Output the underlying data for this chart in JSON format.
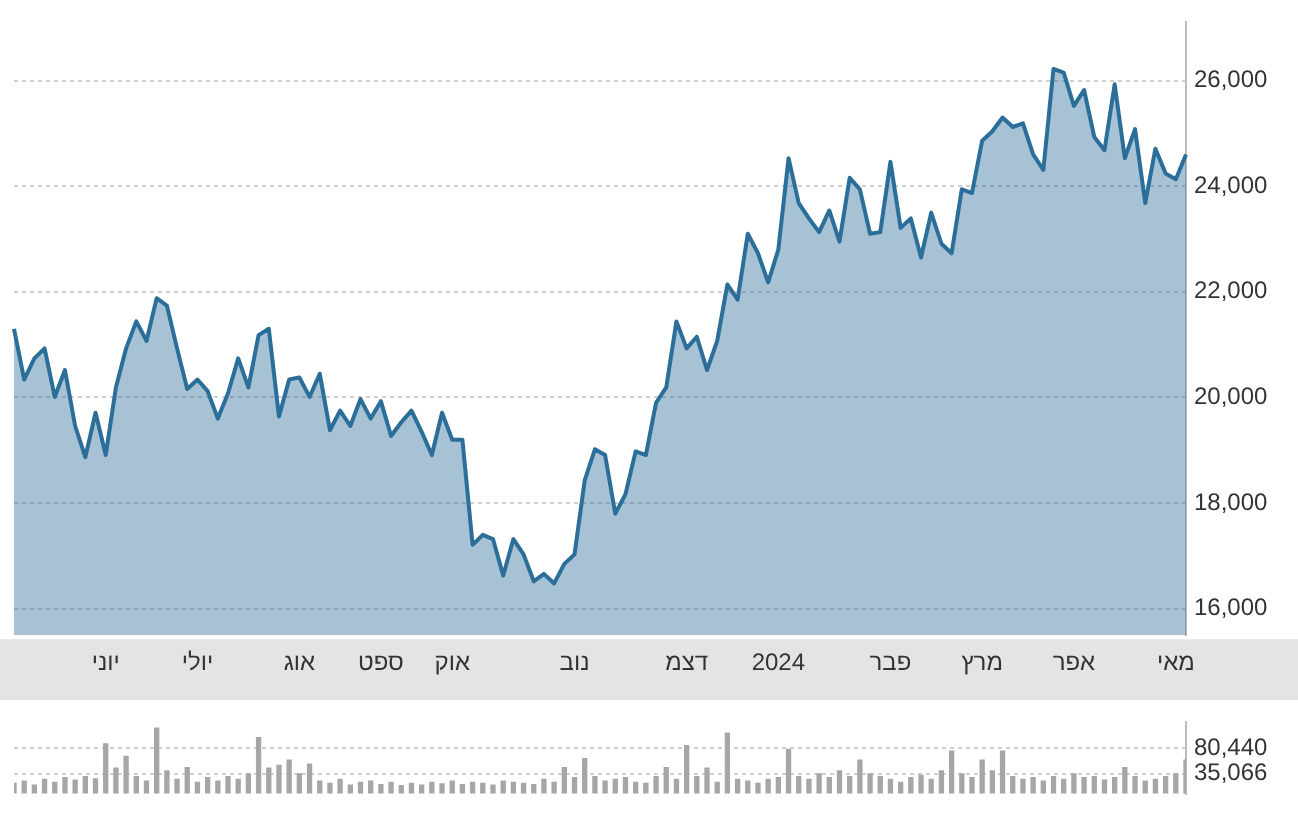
{
  "chart_data": [
    {
      "type": "area",
      "categories": [
        null,
        null,
        null,
        null,
        null,
        null,
        null,
        null,
        null,
        "יוני",
        null,
        null,
        null,
        null,
        null,
        null,
        null,
        null,
        "יולי",
        null,
        null,
        null,
        null,
        null,
        null,
        null,
        null,
        null,
        "אוג",
        null,
        null,
        null,
        null,
        null,
        null,
        null,
        "ספט",
        null,
        null,
        null,
        null,
        null,
        null,
        "אוק",
        null,
        null,
        null,
        null,
        null,
        null,
        null,
        null,
        null,
        null,
        null,
        "נוב",
        null,
        null,
        null,
        null,
        null,
        null,
        null,
        null,
        null,
        null,
        "דצמ",
        null,
        null,
        null,
        null,
        null,
        null,
        null,
        null,
        "2024",
        null,
        null,
        null,
        null,
        null,
        null,
        null,
        null,
        null,
        null,
        "פבר",
        null,
        null,
        null,
        null,
        null,
        null,
        null,
        null,
        "מרץ",
        null,
        null,
        null,
        null,
        null,
        null,
        null,
        null,
        "אפר",
        null,
        null,
        null,
        null,
        null,
        null,
        null,
        null,
        null,
        "מאי",
        null
      ],
      "series": [
        {
          "color": "#2b6e99",
          "values": [
            21300,
            20340,
            20740,
            20930,
            20010,
            20520,
            19460,
            18870,
            19710,
            18910,
            20190,
            20930,
            21440,
            21070,
            21880,
            21740,
            20930,
            20160,
            20340,
            20120,
            19600,
            20080,
            20740,
            20190,
            21180,
            21300,
            19640,
            20340,
            20380,
            20010,
            20450,
            19380,
            19750,
            19460,
            19970,
            19600,
            19930,
            19270,
            19530,
            19750,
            19350,
            18910,
            19710,
            19200,
            19200,
            17210,
            17400,
            17320,
            16630,
            17320,
            17030,
            16520,
            16660,
            16480,
            16850,
            17030,
            18430,
            19020,
            18910,
            17800,
            18170,
            18980,
            18910,
            19900,
            20190,
            21440,
            20930,
            21150,
            20520,
            21070,
            22140,
            21850,
            23100,
            22730,
            22180,
            22800,
            24530,
            23680,
            23390,
            23130,
            23540,
            22950,
            24160,
            23940,
            23100,
            23130,
            24460,
            23210,
            23390,
            22650,
            23500,
            22910,
            22730,
            23940,
            23870,
            24860,
            25040,
            25300,
            25120,
            25190,
            24600,
            24310,
            26220,
            26150,
            25520,
            25820,
            24930,
            24680,
            25930,
            24530,
            25080,
            23680,
            24710,
            24240,
            24130,
            24600
          ]
        }
      ],
      "ylim": [
        15500,
        27100
      ],
      "yticks": [
        {
          "value": 16000,
          "label": "16,000"
        },
        {
          "value": 18000,
          "label": "18,000"
        },
        {
          "value": 20000,
          "label": "20,000"
        },
        {
          "value": 22000,
          "label": "22,000"
        },
        {
          "value": 24000,
          "label": "24,000"
        },
        {
          "value": 26000,
          "label": "26,000"
        }
      ],
      "grid": "y"
    },
    {
      "type": "bar",
      "categories": [
        null,
        null,
        null,
        null,
        null,
        null,
        null,
        null,
        null,
        null,
        null,
        null,
        null,
        null,
        null,
        null,
        null,
        null,
        null,
        null,
        null,
        null,
        null,
        null,
        null,
        null,
        null,
        null,
        null,
        null,
        null,
        null,
        null,
        null,
        null,
        null,
        null,
        null,
        null,
        null,
        null,
        null,
        null,
        null,
        null,
        null,
        null,
        null,
        null,
        null,
        null,
        null,
        null,
        null,
        null,
        null,
        null,
        null,
        null,
        null,
        null,
        null,
        null,
        null,
        null,
        null,
        null,
        null,
        null,
        null,
        null,
        null,
        null,
        null,
        null,
        null,
        null,
        null,
        null,
        null,
        null,
        null,
        null,
        null,
        null,
        null,
        null,
        null,
        null,
        null,
        null,
        null,
        null,
        null,
        null,
        null,
        null,
        null,
        null,
        null,
        null,
        null,
        null,
        null,
        null,
        null,
        null,
        null,
        null,
        null,
        null,
        null,
        null,
        null,
        null,
        null
      ],
      "series": [
        {
          "color": "#a6a6a6",
          "values": [
            18000,
            22000,
            15000,
            25000,
            20000,
            28000,
            24000,
            30000,
            26000,
            88000,
            45000,
            66000,
            30000,
            22000,
            116000,
            40000,
            25000,
            46000,
            20000,
            28000,
            22000,
            30000,
            25000,
            35000,
            99000,
            45000,
            50000,
            59000,
            35000,
            52000,
            22000,
            18000,
            25000,
            15000,
            20000,
            22000,
            16000,
            20000,
            14000,
            18000,
            15000,
            20000,
            17000,
            22000,
            16000,
            20000,
            18000,
            15000,
            22000,
            20000,
            18000,
            16000,
            25000,
            20000,
            46000,
            28000,
            62000,
            30000,
            22000,
            25000,
            28000,
            20000,
            18000,
            30000,
            46000,
            25000,
            85000,
            30000,
            45000,
            20000,
            107000,
            25000,
            22000,
            18000,
            25000,
            28000,
            78000,
            30000,
            25000,
            35000,
            28000,
            40000,
            30000,
            59000,
            35000,
            30000,
            25000,
            20000,
            28000,
            32000,
            25000,
            40000,
            75000,
            35000,
            28000,
            59000,
            40000,
            75000,
            30000,
            25000,
            28000,
            22000,
            30000,
            25000,
            35000,
            28000,
            30000,
            24000,
            28000,
            46000,
            30000,
            22000,
            25000,
            30000,
            35000,
            59000
          ]
        }
      ],
      "ylim": [
        0,
        126000
      ],
      "yticks": [
        {
          "value": 35066,
          "label": "35,066"
        },
        {
          "value": 80440,
          "label": "80,440"
        }
      ],
      "grid": "y",
      "tick_labels": "y"
    }
  ]
}
